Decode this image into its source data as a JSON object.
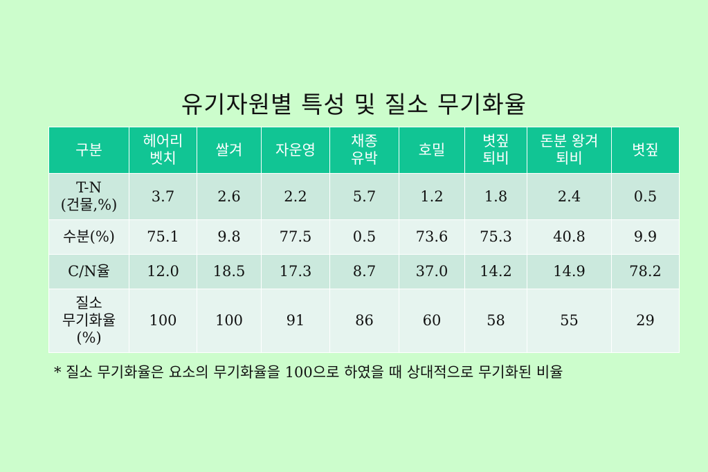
{
  "title": "유기자원별 특성 및 질소 무기화율",
  "table": {
    "headers": [
      [
        "구분"
      ],
      [
        "헤어리",
        "벳치"
      ],
      [
        "쌀겨"
      ],
      [
        "자운영"
      ],
      [
        "채종",
        "유박"
      ],
      [
        "호밀"
      ],
      [
        "볏짚",
        "퇴비"
      ],
      [
        "돈분 왕겨",
        "퇴비"
      ],
      [
        "볏짚"
      ]
    ],
    "rows": [
      {
        "label": [
          "T-N",
          "(건물,%)"
        ],
        "values": [
          "3.7",
          "2.6",
          "2.2",
          "5.7",
          "1.2",
          "1.8",
          "2.4",
          "0.5"
        ]
      },
      {
        "label": [
          "수분(%)"
        ],
        "values": [
          "75.1",
          "9.8",
          "77.5",
          "0.5",
          "73.6",
          "75.3",
          "40.8",
          "9.9"
        ]
      },
      {
        "label": [
          "C/N율"
        ],
        "values": [
          "12.0",
          "18.5",
          "17.3",
          "8.7",
          "37.0",
          "14.2",
          "14.9",
          "78.2"
        ]
      },
      {
        "label": [
          "질소",
          "무기화율",
          "(%)"
        ],
        "values": [
          "100",
          "100",
          "91",
          "86",
          "60",
          "58",
          "55",
          "29"
        ]
      }
    ]
  },
  "footnote": "* 질소 무기화율은 요소의 무기화율을 100으로 하였을 때 상대적으로 무기화된 비율",
  "colors": {
    "background": "#ccfdcc",
    "header": "#11c594",
    "row_dark": "#cbe9dd",
    "row_light": "#e6f4ef"
  }
}
